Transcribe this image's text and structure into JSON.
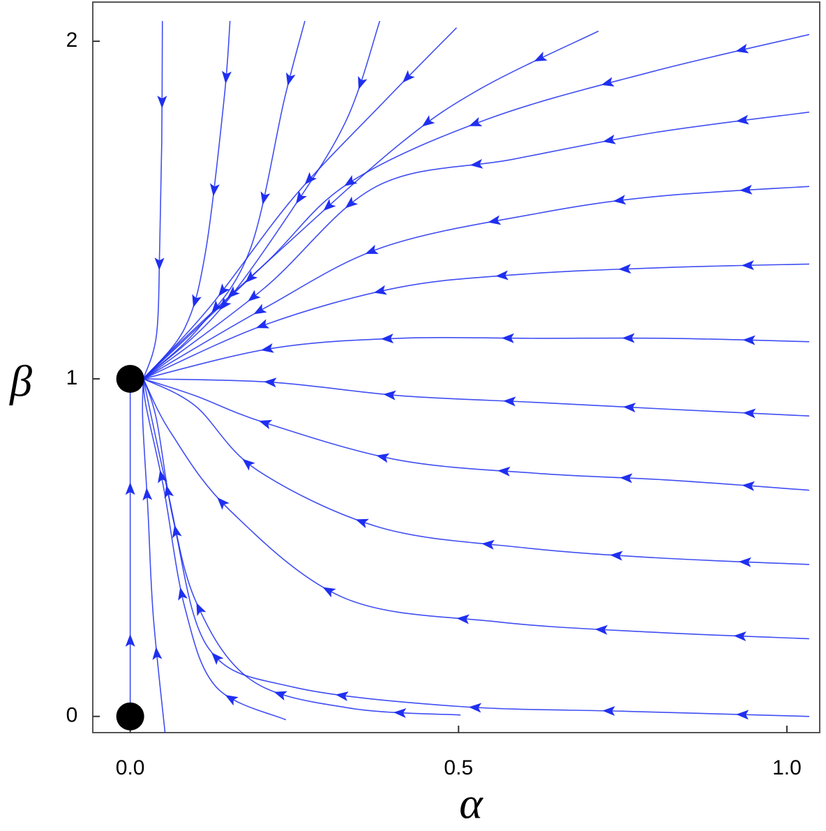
{
  "chart_data": {
    "type": "streamplot",
    "x_label": "α",
    "y_label": "β",
    "xlim": [
      -0.057,
      1.05
    ],
    "ylim": [
      -0.048,
      2.116
    ],
    "xticks": [
      {
        "value": 0,
        "label": "0.0"
      },
      {
        "value": 0.5,
        "label": "0.5"
      },
      {
        "value": 1,
        "label": "1.0"
      }
    ],
    "yticks": [
      0,
      1,
      2
    ],
    "grid": false,
    "color": "#1f2ff0",
    "point_color": "#000000",
    "points": {
      "x": [
        0,
        0
      ],
      "y": [
        1,
        0
      ]
    },
    "streamlines": [
      {
        "x": [
          0.049,
          0.048,
          0.045,
          0.04,
          0.02
        ],
        "y": [
          2.06,
          1.7,
          1.4,
          1.13,
          1.0
        ]
      },
      {
        "x": [
          0.152,
          0.143,
          0.115,
          0.083,
          0.02
        ],
        "y": [
          2.06,
          1.83,
          1.38,
          1.15,
          1.0
        ]
      },
      {
        "x": [
          0.266,
          0.235,
          0.182,
          0.104,
          0.02
        ],
        "y": [
          2.06,
          1.83,
          1.38,
          1.15,
          1.0
        ]
      },
      {
        "x": [
          0.38,
          0.33,
          0.246,
          0.13,
          0.02
        ],
        "y": [
          2.06,
          1.77,
          1.5,
          1.19,
          1.0
        ]
      },
      {
        "x": [
          0.497,
          0.386,
          0.25,
          0.12,
          0.02
        ],
        "y": [
          2.04,
          1.82,
          1.54,
          1.21,
          1.0
        ]
      },
      {
        "x": [
          0.713,
          0.534,
          0.407,
          0.205,
          0.088,
          0.02
        ],
        "y": [
          2.03,
          1.86,
          1.69,
          1.34,
          1.13,
          1.0
        ]
      },
      {
        "x": [
          1.034,
          0.795,
          0.545,
          0.333,
          0.205,
          0.02
        ],
        "y": [
          2.02,
          1.91,
          1.77,
          1.58,
          1.34,
          1.0
        ]
      },
      {
        "x": [
          1.034,
          0.8,
          0.582,
          0.375,
          0.205,
          0.035,
          0.02
        ],
        "y": [
          1.79,
          1.73,
          1.65,
          1.57,
          1.27,
          1.02,
          1.0
        ]
      },
      {
        "x": [
          1.034,
          0.8,
          0.62,
          0.385,
          0.205,
          0.02
        ],
        "y": [
          1.57,
          1.54,
          1.49,
          1.39,
          1.21,
          1.0
        ]
      },
      {
        "x": [
          1.034,
          0.82,
          0.598,
          0.407,
          0.205,
          0.02
        ],
        "y": [
          1.34,
          1.33,
          1.31,
          1.27,
          1.16,
          1.0
        ]
      },
      {
        "x": [
          1.034,
          0.82,
          0.62,
          0.407,
          0.215,
          0.02
        ],
        "y": [
          1.11,
          1.12,
          1.12,
          1.12,
          1.09,
          1.0
        ]
      },
      {
        "x": [
          1.034,
          0.82,
          0.62,
          0.412,
          0.215,
          0.02
        ],
        "y": [
          0.89,
          0.91,
          0.93,
          0.95,
          0.99,
          1.0
        ]
      },
      {
        "x": [
          1.034,
          0.82,
          0.62,
          0.407,
          0.205,
          0.099,
          0.02
        ],
        "y": [
          0.67,
          0.7,
          0.72,
          0.76,
          0.87,
          0.95,
          1.0
        ]
      },
      {
        "x": [
          1.034,
          0.8,
          0.598,
          0.38,
          0.193,
          0.099,
          0.02
        ],
        "y": [
          0.45,
          0.47,
          0.5,
          0.56,
          0.73,
          0.92,
          1.0
        ]
      },
      {
        "x": [
          1.034,
          0.79,
          0.56,
          0.327,
          0.152,
          0.062,
          0.02
        ],
        "y": [
          0.23,
          0.25,
          0.28,
          0.35,
          0.61,
          0.84,
          1.0
        ]
      },
      {
        "x": [
          1.034,
          0.758,
          0.497,
          0.248,
          0.12,
          0.067,
          0.04,
          0.02
        ],
        "y": [
          0.0,
          0.015,
          0.03,
          0.087,
          0.2,
          0.57,
          0.88,
          1.0
        ]
      },
      {
        "x": [
          0.503,
          0.333,
          0.184,
          0.099,
          0.056,
          0.02
        ],
        "y": [
          0.004,
          0.025,
          0.108,
          0.345,
          0.676,
          1.0
        ]
      },
      {
        "x": [
          0.237,
          0.131,
          0.083,
          0.051,
          0.024,
          0.02
        ],
        "y": [
          -0.01,
          0.087,
          0.324,
          0.676,
          0.92,
          1.0
        ]
      },
      {
        "x": [
          0.053,
          0.035,
          0.027,
          0.019,
          0.02
        ],
        "y": [
          -0.048,
          0.3,
          0.61,
          0.88,
          1.0
        ]
      },
      {
        "x": [
          0,
          0,
          0,
          0
        ],
        "y": [
          0.0,
          0.35,
          0.7,
          1.0
        ]
      }
    ]
  }
}
